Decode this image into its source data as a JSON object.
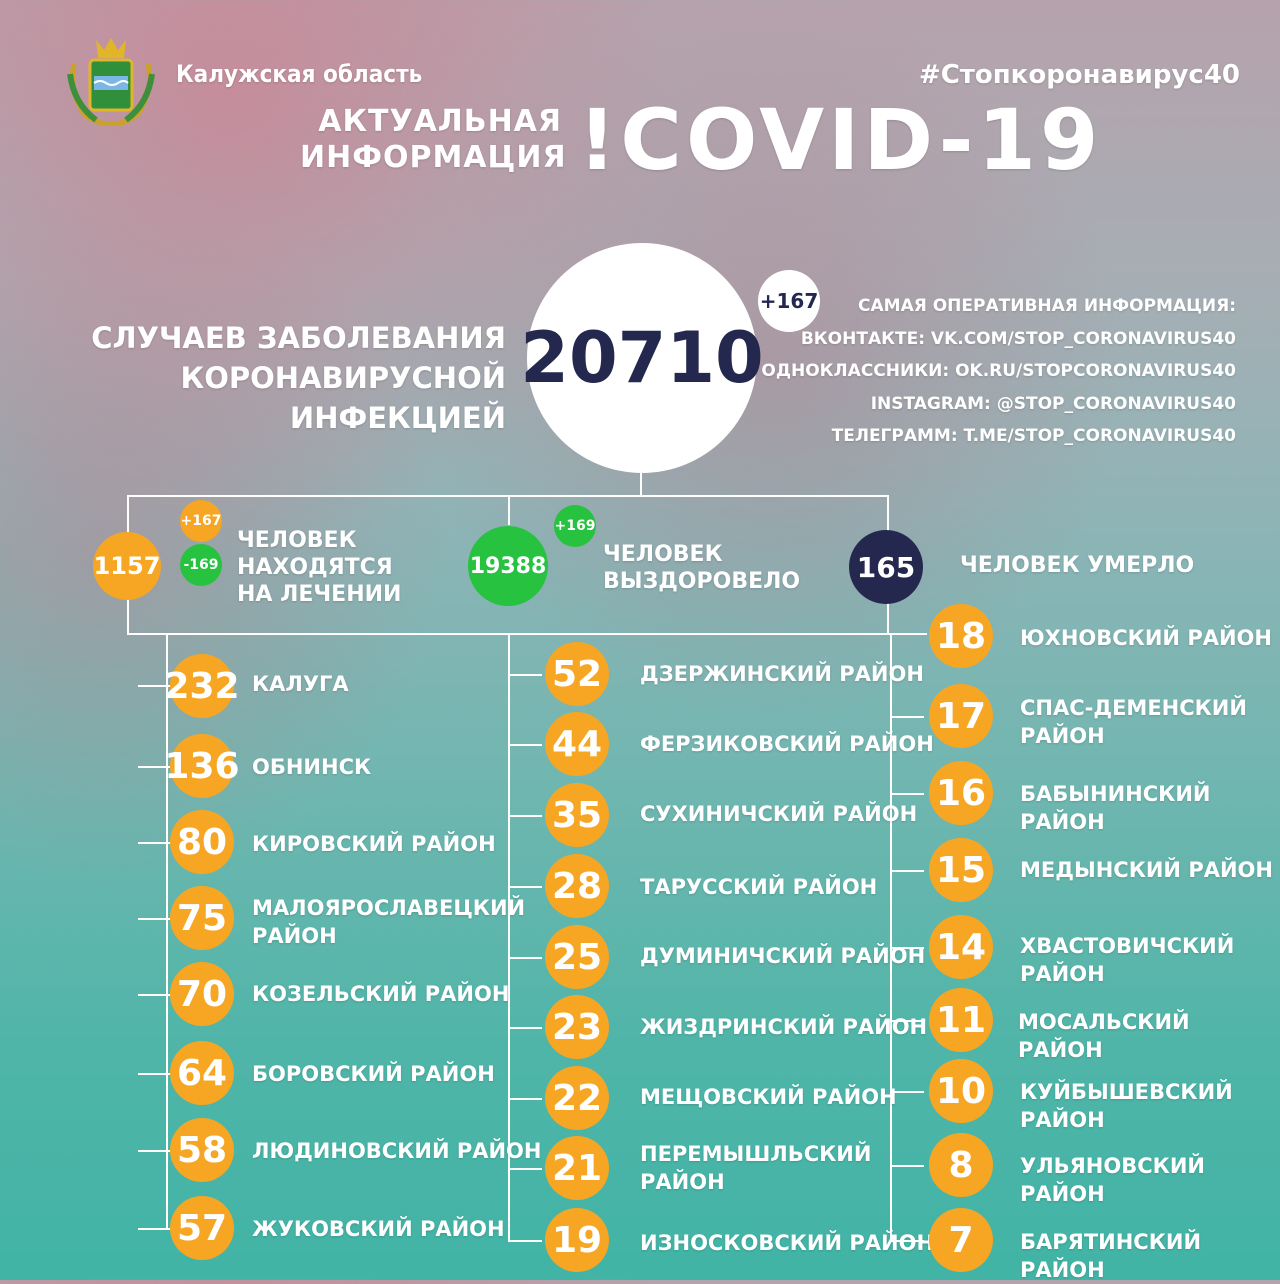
{
  "header": {
    "region": "Калужская область",
    "hashtag": "#Стопкоронавирус40",
    "title_line1": "АКТУАЛЬНАЯ",
    "title_line2": "ИНФОРМАЦИЯ",
    "title_big": "!COVID-19"
  },
  "cases": {
    "label_line1": "СЛУЧАЕВ ЗАБОЛЕВАНИЯ",
    "label_line2": "КОРОНАВИРУСНОЙ ИНФЕКЦИЕЙ",
    "total": "20710",
    "delta": "+167"
  },
  "links": {
    "heading": "САМАЯ ОПЕРАТИВНАЯ ИНФОРМАЦИЯ:",
    "vk": "ВКОНТАКТЕ: VK.COM/STOP_CORONAVIRUS40",
    "ok": "ОДНОКЛАССНИКИ: OK.RU/STOPCORONAVIRUS40",
    "instagram": "INSTAGRAM: @STOP_CORONAVIRUS40",
    "telegram": "ТЕЛЕГРАММ: T.ME/STOP_CORONAVIRUS40"
  },
  "summary": {
    "treatment": {
      "value": "1157",
      "plus": "+167",
      "minus": "-169",
      "line1": "ЧЕЛОВЕК",
      "line2": "НАХОДЯТСЯ",
      "line3": "НА ЛЕЧЕНИИ"
    },
    "recovered": {
      "value": "19388",
      "plus": "+169",
      "line1": "ЧЕЛОВЕК",
      "line2": "ВЫЗДОРОВЕЛО"
    },
    "died": {
      "value": "165",
      "label": "ЧЕЛОВЕК УМЕРЛО"
    }
  },
  "colors": {
    "orange": "#f6a623",
    "green": "#27c23f",
    "navy": "#24284f"
  },
  "districts": {
    "col1": [
      {
        "value": "232",
        "line1": "КАЛУГА",
        "line2": ""
      },
      {
        "value": "136",
        "line1": "ОБНИНСК",
        "line2": ""
      },
      {
        "value": "80",
        "line1": "КИРОВСКИЙ РАЙОН",
        "line2": ""
      },
      {
        "value": "75",
        "line1": "МАЛОЯРОСЛАВЕЦКИЙ",
        "line2": "РАЙОН"
      },
      {
        "value": "70",
        "line1": "КОЗЕЛЬСКИЙ РАЙОН",
        "line2": ""
      },
      {
        "value": "64",
        "line1": "БОРОВСКИЙ РАЙОН",
        "line2": ""
      },
      {
        "value": "58",
        "line1": "ЛЮДИНОВСКИЙ РАЙОН",
        "line2": ""
      },
      {
        "value": "57",
        "line1": "ЖУКОВСКИЙ РАЙОН",
        "line2": ""
      }
    ],
    "col2": [
      {
        "value": "52",
        "line1": "ДЗЕРЖИНСКИЙ РАЙОН",
        "line2": ""
      },
      {
        "value": "44",
        "line1": "ФЕРЗИКОВСКИЙ РАЙОН",
        "line2": ""
      },
      {
        "value": "35",
        "line1": "СУХИНИЧСКИЙ РАЙОН",
        "line2": ""
      },
      {
        "value": "28",
        "line1": "ТАРУССКИЙ РАЙОН",
        "line2": ""
      },
      {
        "value": "25",
        "line1": "ДУМИНИЧСКИЙ РАЙОН",
        "line2": ""
      },
      {
        "value": "23",
        "line1": "ЖИЗДРИНСКИЙ РАЙОН",
        "line2": ""
      },
      {
        "value": "22",
        "line1": "МЕЩОВСКИЙ РАЙОН",
        "line2": ""
      },
      {
        "value": "21",
        "line1": "ПЕРЕМЫШЛЬСКИЙ",
        "line2": "РАЙОН"
      },
      {
        "value": "19",
        "line1": "ИЗНОСКОВСКИЙ РАЙОН",
        "line2": ""
      }
    ],
    "col3": [
      {
        "value": "18",
        "line1": "ЮХНОВСКИЙ РАЙОН",
        "line2": ""
      },
      {
        "value": "17",
        "line1": "СПАС-ДЕМЕНСКИЙ",
        "line2": "РАЙОН"
      },
      {
        "value": "16",
        "line1": "БАБЫНИНСКИЙ РАЙОН",
        "line2": ""
      },
      {
        "value": "15",
        "line1": "МЕДЫНСКИЙ РАЙОН",
        "line2": ""
      },
      {
        "value": "14",
        "line1": "ХВАСТОВИЧСКИЙ РАЙОН",
        "line2": ""
      },
      {
        "value": "11",
        "line1": "МОСАЛЬСКИЙ РАЙОН",
        "line2": ""
      },
      {
        "value": "10",
        "line1": "КУЙБЫШЕВСКИЙ РАЙОН",
        "line2": ""
      },
      {
        "value": "8",
        "line1": "УЛЬЯНОВСКИЙ РАЙОН",
        "line2": ""
      },
      {
        "value": "7",
        "line1": "БАРЯТИНСКИЙ РАЙОН",
        "line2": ""
      }
    ]
  }
}
